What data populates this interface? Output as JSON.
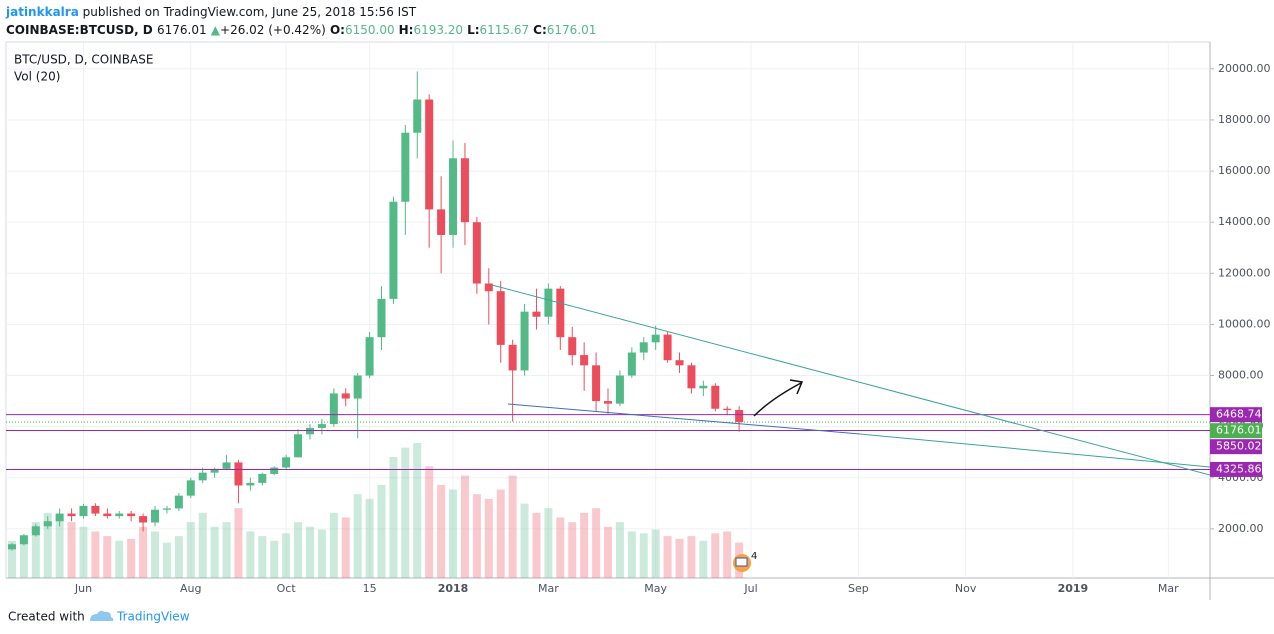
{
  "header": {
    "author": "jatinkkalra",
    "text": "published on TradingView.com, June 25, 2018 15:56 IST"
  },
  "symbol_bar": {
    "symbol": "COINBASE:BTCUSD, D",
    "price": "6176.01",
    "arrow": "▲",
    "change": "+26.02 (+0.42%)",
    "ohlc": [
      [
        "O:",
        "6150.00"
      ],
      [
        "H:",
        "6193.20"
      ],
      [
        "L:",
        "6115.67"
      ],
      [
        "C:",
        "6176.01"
      ]
    ]
  },
  "footer": {
    "created": "Created with",
    "brand": "TradingView"
  },
  "chart_data": {
    "type": "candlestick",
    "title": "BTC/USD, D, COINBASE",
    "volume_label": "Vol (20)",
    "events_badge": "4",
    "categories": [
      null,
      null,
      null,
      null,
      null,
      null,
      "Jun",
      null,
      null,
      null,
      null,
      null,
      null,
      null,
      null,
      "Aug",
      null,
      null,
      null,
      null,
      null,
      null,
      null,
      "Oct",
      null,
      null,
      null,
      null,
      null,
      null,
      "15",
      null,
      null,
      null,
      null,
      null,
      null,
      "2018",
      null,
      null,
      null,
      null,
      null,
      null,
      null,
      "Mar",
      null,
      null,
      null,
      null,
      null,
      null,
      null,
      null,
      "May",
      null,
      null,
      null,
      null,
      null,
      null,
      null,
      "Jul",
      null,
      null,
      null,
      null,
      null,
      null,
      null,
      null,
      "Sep",
      null,
      null,
      null,
      null,
      null,
      null,
      null,
      null,
      "Nov",
      null,
      null,
      null,
      null,
      null,
      null,
      null,
      null,
      "2019",
      null,
      null,
      null,
      null,
      null,
      null,
      null,
      "Mar",
      null,
      null,
      null
    ],
    "open": [
      1200,
      1400,
      1750,
      2100,
      2300,
      2600,
      2500,
      2900,
      2600,
      2500,
      2600,
      2500,
      2250,
      2750,
      2800,
      3300,
      3900,
      4200,
      4350,
      4600,
      3700,
      3800,
      4150,
      4400,
      4800,
      5700,
      5950,
      6100,
      7300,
      7100,
      8000,
      9500,
      11000,
      14800,
      17500,
      18800,
      14500,
      13500,
      16500,
      14000,
      11600,
      11300,
      9200,
      8200,
      10500,
      10300,
      11400,
      9500,
      8800,
      8400,
      7000,
      6900,
      8000,
      8900,
      9300,
      9600,
      8600,
      8400,
      7500,
      7600,
      6700,
      6650,
      null,
      null,
      null,
      null,
      null,
      null,
      null,
      null,
      null,
      null,
      null,
      null,
      null,
      null,
      null,
      null,
      null,
      null,
      null,
      null,
      null,
      null,
      null,
      null,
      null,
      null,
      null,
      null,
      null,
      null,
      null,
      null,
      null,
      null,
      null,
      null,
      null,
      null,
      null
    ],
    "high": [
      1450,
      1800,
      2200,
      2500,
      2800,
      2800,
      2980,
      3000,
      2800,
      2700,
      2700,
      2600,
      2900,
      2900,
      3400,
      4000,
      4400,
      4400,
      4900,
      4700,
      4000,
      4200,
      4450,
      4900,
      5900,
      6100,
      6300,
      7500,
      7500,
      8100,
      9700,
      11500,
      15000,
      17800,
      19900,
      19000,
      15800,
      17200,
      17100,
      14200,
      12200,
      11700,
      9400,
      10800,
      11400,
      11600,
      11500,
      9900,
      9300,
      8900,
      7500,
      8200,
      9100,
      9500,
      9950,
      9700,
      8900,
      8500,
      7800,
      7700,
      6800,
      6800,
      null,
      null,
      null,
      null,
      null,
      null,
      null,
      null,
      null,
      null,
      null,
      null,
      null,
      null,
      null,
      null,
      null,
      null,
      null,
      null,
      null,
      null,
      null,
      null,
      null,
      null,
      null,
      null,
      null,
      null,
      null,
      null,
      null,
      null,
      null,
      null,
      null,
      null,
      null
    ],
    "low": [
      1150,
      1350,
      1700,
      2000,
      2100,
      2300,
      2400,
      2500,
      2400,
      2400,
      2300,
      1900,
      2100,
      2600,
      2700,
      3200,
      3800,
      4000,
      4300,
      3000,
      3500,
      3700,
      4100,
      4300,
      4800,
      5500,
      5700,
      6000,
      6800,
      5550,
      7900,
      9000,
      10800,
      13500,
      16500,
      13000,
      12000,
      13000,
      13100,
      11200,
      10000,
      8500,
      6200,
      8000,
      9800,
      10000,
      9000,
      8400,
      7400,
      6600,
      6500,
      6800,
      7900,
      8600,
      9000,
      8500,
      8100,
      7300,
      7200,
      6600,
      6450,
      5800,
      null,
      null,
      null,
      null,
      null,
      null,
      null,
      null,
      null,
      null,
      null,
      null,
      null,
      null,
      null,
      null,
      null,
      null,
      null,
      null,
      null,
      null,
      null,
      null,
      null,
      null,
      null,
      null,
      null,
      null,
      null,
      null,
      null,
      null,
      null,
      null,
      null,
      null,
      null
    ],
    "close": [
      1400,
      1750,
      2100,
      2300,
      2600,
      2500,
      2900,
      2600,
      2500,
      2600,
      2500,
      2250,
      2750,
      2800,
      3300,
      3900,
      4200,
      4350,
      4600,
      3700,
      3800,
      4150,
      4400,
      4800,
      5700,
      5950,
      6100,
      7300,
      7100,
      8000,
      9500,
      11000,
      14800,
      17500,
      18800,
      14500,
      13500,
      16500,
      14000,
      11600,
      11300,
      9200,
      8200,
      10500,
      10300,
      11400,
      9500,
      8800,
      8400,
      7000,
      6900,
      8000,
      8900,
      9300,
      9600,
      8600,
      8400,
      7500,
      7600,
      6700,
      6650,
      6176.01,
      null,
      null,
      null,
      null,
      null,
      null,
      null,
      null,
      null,
      null,
      null,
      null,
      null,
      null,
      null,
      null,
      null,
      null,
      null,
      null,
      null,
      null,
      null,
      null,
      null,
      null,
      null,
      null,
      null,
      null,
      null,
      null,
      null,
      null,
      null,
      null,
      null,
      null,
      null
    ],
    "volume": [
      40,
      45,
      60,
      70,
      65,
      60,
      55,
      50,
      45,
      40,
      42,
      55,
      50,
      38,
      45,
      60,
      70,
      55,
      60,
      75,
      50,
      45,
      40,
      48,
      60,
      55,
      52,
      70,
      65,
      90,
      85,
      100,
      130,
      140,
      145,
      120,
      100,
      95,
      110,
      90,
      85,
      95,
      110,
      80,
      70,
      75,
      65,
      60,
      70,
      75,
      55,
      60,
      50,
      48,
      52,
      45,
      42,
      45,
      40,
      48,
      50,
      38,
      null,
      null,
      null,
      null,
      null,
      null,
      null,
      null,
      null,
      null,
      null,
      null,
      null,
      null,
      null,
      null,
      null,
      null,
      null,
      null,
      null,
      null,
      null,
      null,
      null,
      null,
      null,
      null,
      null,
      null,
      null,
      null,
      null,
      null,
      null,
      null,
      null,
      null,
      null
    ],
    "up_color": "#53b987",
    "down_color": "#eb4d5c",
    "level_color": "#9c27b0",
    "last_color": "#4caf50",
    "levels": [
      6468.74,
      5850.02,
      4325.86
    ],
    "last_price": 6176.01,
    "ylim": [
      0,
      21050
    ],
    "yticks": [
      {
        "value": 2000,
        "label": "2000.00"
      },
      {
        "value": 4000,
        "label": "4000.00"
      },
      {
        "value": 6000,
        "label": "6000.00"
      },
      {
        "value": 8000,
        "label": "8000.00"
      },
      {
        "value": 10000,
        "label": "10000.00"
      },
      {
        "value": 12000,
        "label": "12000.00"
      },
      {
        "value": 14000,
        "label": "14000.00"
      },
      {
        "value": 16000,
        "label": "16000.00"
      },
      {
        "value": 18000,
        "label": "18000.00"
      },
      {
        "value": 20000,
        "label": "20000.00"
      }
    ],
    "grid": true
  }
}
